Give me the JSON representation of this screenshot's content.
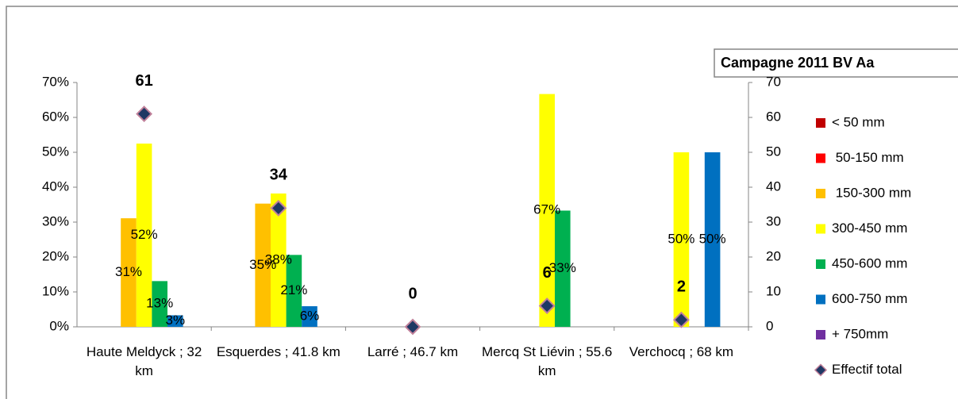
{
  "chart_data": {
    "type": "bar",
    "title": "Campagne 2011 BV Aa",
    "categories": [
      "Haute Meldyck ; 32 km",
      "Esquerdes ; 41.8 km",
      "Larré ; 46.7 km",
      "Mercq St Liévin ; 55.6 km",
      "Verchocq ; 68 km"
    ],
    "series": [
      {
        "name": "< 50 mm",
        "color": "#c00000",
        "values": [
          null,
          null,
          null,
          null,
          null
        ]
      },
      {
        "name": " 50-150 mm",
        "color": "#ff0000",
        "values": [
          null,
          null,
          null,
          null,
          null
        ]
      },
      {
        "name": " 150-300 mm",
        "color": "#ffc000",
        "values": [
          31.1,
          35.3,
          null,
          null,
          null
        ],
        "value_labels": [
          "31%",
          "35%",
          null,
          null,
          null
        ]
      },
      {
        "name": "300-450 mm",
        "color": "#ffff00",
        "values": [
          52.5,
          38.2,
          null,
          66.7,
          50
        ],
        "value_labels": [
          "52%",
          "38%",
          null,
          "67%",
          "50%"
        ]
      },
      {
        "name": "450-600 mm",
        "color": "#00b050",
        "values": [
          13.1,
          20.6,
          null,
          33.3,
          null
        ],
        "value_labels": [
          "13%",
          "21%",
          null,
          "33%",
          null
        ]
      },
      {
        "name": "600-750 mm",
        "color": "#0070c0",
        "values": [
          3.3,
          5.9,
          null,
          null,
          50
        ],
        "value_labels": [
          "3%",
          "6%",
          null,
          null,
          "50%"
        ]
      },
      {
        "name": "+ 750mm",
        "color": "#7030a0",
        "values": [
          null,
          null,
          null,
          null,
          null
        ]
      },
      {
        "name": "Effectif total",
        "type": "scatter",
        "axis": "y2",
        "color": "#1f3864",
        "values": [
          61,
          34,
          0,
          6,
          2
        ]
      }
    ],
    "ylim": [
      0,
      70
    ],
    "yticks": [
      {
        "value": 0,
        "label": "0%"
      },
      {
        "value": 10,
        "label": "10%"
      },
      {
        "value": 20,
        "label": "20%"
      },
      {
        "value": 30,
        "label": "30%"
      },
      {
        "value": 40,
        "label": "40%"
      },
      {
        "value": 50,
        "label": "50%"
      },
      {
        "value": 60,
        "label": "60%"
      },
      {
        "value": 70,
        "label": "70%"
      }
    ],
    "y2lim": [
      0,
      70
    ],
    "y2ticks": [
      0,
      10,
      20,
      30,
      40,
      50,
      60,
      70
    ],
    "legend": "right"
  }
}
